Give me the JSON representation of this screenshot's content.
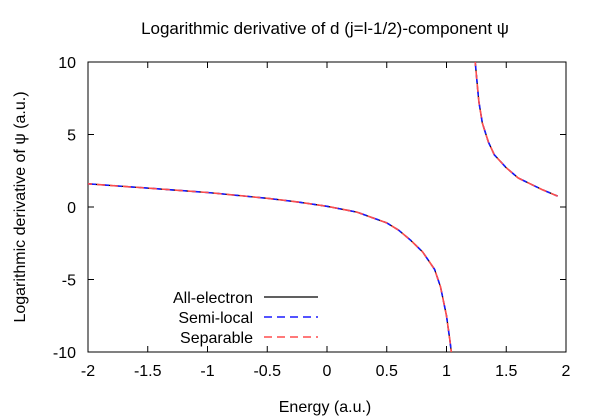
{
  "chart_data": {
    "type": "line",
    "title": "Logarithmic derivative of d (j=l-1/2)-component ψ",
    "xlabel": "Energy (a.u.)",
    "ylabel": "Logarithmic derivative of ψ (a.u.)",
    "xlim": [
      -2,
      2
    ],
    "ylim": [
      -10,
      10
    ],
    "x_ticks": [
      "-2",
      "-1.5",
      "-1",
      "-0.5",
      "0",
      "0.5",
      "1",
      "1.5",
      "2"
    ],
    "y_ticks": [
      "10",
      "5",
      "0",
      "-5",
      "-10"
    ],
    "grid": false,
    "legend_position": "bottom-left",
    "series": [
      {
        "name": "All-electron",
        "color": "#000000",
        "dash": "solid",
        "segments": [
          [
            [
              -2.0,
              1.6
            ],
            [
              -1.75,
              1.45
            ],
            [
              -1.5,
              1.3
            ],
            [
              -1.25,
              1.15
            ],
            [
              -1.0,
              1.0
            ],
            [
              -0.75,
              0.8
            ],
            [
              -0.5,
              0.6
            ],
            [
              -0.25,
              0.35
            ],
            [
              0.0,
              0.05
            ],
            [
              0.25,
              -0.35
            ],
            [
              0.5,
              -1.1
            ],
            [
              0.6,
              -1.6
            ],
            [
              0.7,
              -2.3
            ],
            [
              0.8,
              -3.1
            ],
            [
              0.9,
              -4.3
            ],
            [
              0.95,
              -5.5
            ],
            [
              1.0,
              -7.5
            ],
            [
              1.03,
              -9.3
            ],
            [
              1.04,
              -10.0
            ]
          ],
          [
            [
              1.24,
              10.0
            ],
            [
              1.27,
              7.3
            ],
            [
              1.3,
              5.8
            ],
            [
              1.35,
              4.5
            ],
            [
              1.4,
              3.6
            ],
            [
              1.5,
              2.7
            ],
            [
              1.6,
              2.0
            ],
            [
              1.7,
              1.6
            ],
            [
              1.8,
              1.2
            ],
            [
              1.93,
              0.75
            ]
          ]
        ]
      },
      {
        "name": "Semi-local",
        "color": "#1a1aff",
        "dash": "dashed",
        "segments": [
          [
            [
              -2.0,
              1.6
            ],
            [
              -1.75,
              1.45
            ],
            [
              -1.5,
              1.3
            ],
            [
              -1.25,
              1.15
            ],
            [
              -1.0,
              1.0
            ],
            [
              -0.75,
              0.8
            ],
            [
              -0.5,
              0.6
            ],
            [
              -0.25,
              0.35
            ],
            [
              0.0,
              0.05
            ],
            [
              0.25,
              -0.35
            ],
            [
              0.5,
              -1.1
            ],
            [
              0.6,
              -1.6
            ],
            [
              0.7,
              -2.3
            ],
            [
              0.8,
              -3.1
            ],
            [
              0.9,
              -4.3
            ],
            [
              0.95,
              -5.5
            ],
            [
              1.0,
              -7.5
            ],
            [
              1.03,
              -9.3
            ],
            [
              1.04,
              -10.0
            ]
          ],
          [
            [
              1.24,
              10.0
            ],
            [
              1.27,
              7.3
            ],
            [
              1.3,
              5.8
            ],
            [
              1.35,
              4.5
            ],
            [
              1.4,
              3.6
            ],
            [
              1.5,
              2.7
            ],
            [
              1.6,
              2.0
            ],
            [
              1.7,
              1.6
            ],
            [
              1.8,
              1.2
            ],
            [
              1.93,
              0.75
            ]
          ]
        ]
      },
      {
        "name": "Separable",
        "color": "#ff4d4d",
        "dash": "dashed",
        "segments": [
          [
            [
              -2.0,
              1.6
            ],
            [
              -1.75,
              1.45
            ],
            [
              -1.5,
              1.3
            ],
            [
              -1.25,
              1.15
            ],
            [
              -1.0,
              1.0
            ],
            [
              -0.75,
              0.8
            ],
            [
              -0.5,
              0.6
            ],
            [
              -0.25,
              0.35
            ],
            [
              0.0,
              0.05
            ],
            [
              0.25,
              -0.35
            ],
            [
              0.5,
              -1.1
            ],
            [
              0.6,
              -1.6
            ],
            [
              0.7,
              -2.3
            ],
            [
              0.8,
              -3.1
            ],
            [
              0.9,
              -4.3
            ],
            [
              0.95,
              -5.5
            ],
            [
              1.0,
              -7.5
            ],
            [
              1.03,
              -9.3
            ],
            [
              1.04,
              -10.0
            ]
          ],
          [
            [
              1.24,
              10.0
            ],
            [
              1.27,
              7.3
            ],
            [
              1.3,
              5.8
            ],
            [
              1.35,
              4.5
            ],
            [
              1.4,
              3.6
            ],
            [
              1.5,
              2.7
            ],
            [
              1.6,
              2.0
            ],
            [
              1.7,
              1.6
            ],
            [
              1.8,
              1.2
            ],
            [
              1.93,
              0.75
            ]
          ]
        ]
      }
    ]
  }
}
